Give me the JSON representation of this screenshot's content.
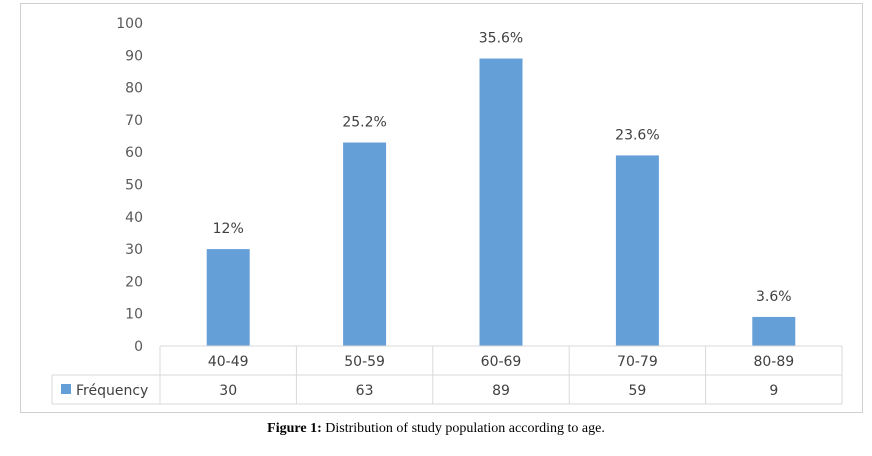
{
  "chart_data": {
    "type": "bar",
    "categories": [
      "40-49",
      "50-59",
      "60-69",
      "70-79",
      "80-89"
    ],
    "series": [
      {
        "name": "Fréquency",
        "values": [
          30,
          63,
          89,
          59,
          9
        ],
        "color": "#659FD8"
      }
    ],
    "data_labels": [
      "12%",
      "25.2%",
      "35.6%",
      "23.6%",
      "3.6%"
    ],
    "ylim": [
      0,
      100
    ],
    "yticks": [
      0,
      10,
      20,
      30,
      40,
      50,
      60,
      70,
      80,
      90,
      100
    ],
    "grid": false,
    "data_table": true
  },
  "caption": {
    "label": "Figure 1:",
    "text": " Distribution of study population according to age."
  }
}
